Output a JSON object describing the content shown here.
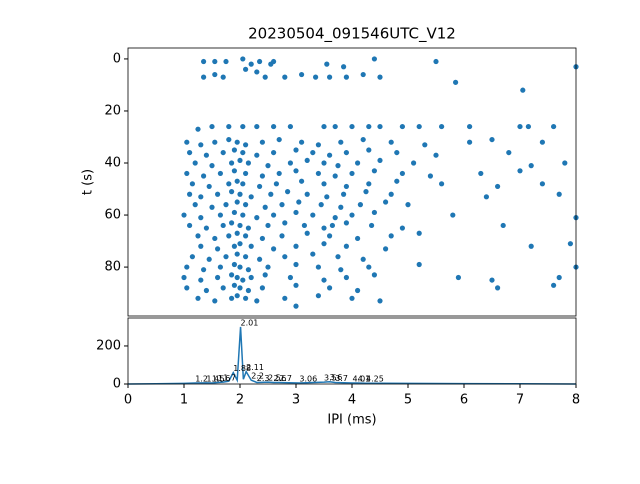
{
  "chart_data": [
    {
      "type": "scatter",
      "title": "20230504_091546UTC_V12",
      "ylabel": "t (s)",
      "color": "#1f77b4",
      "xlim": [
        0,
        8
      ],
      "ylim": [
        -4.2,
        98.8
      ],
      "y_inverted": true,
      "yticks": [
        0,
        20,
        40,
        60,
        80
      ],
      "x": [
        1.35,
        1.55,
        1.75,
        2.05,
        2.35,
        2.55,
        1.35,
        1.55,
        1.7,
        2.1,
        2.3,
        2.45,
        2.8,
        3.1,
        3.35,
        3.6,
        3.9,
        4.2,
        4.4,
        4.5,
        5.5,
        5.85,
        7.05,
        8,
        3.55,
        3.85,
        2.6,
        2.2,
        1.5,
        1.8,
        2.05,
        2.3,
        2.6,
        2.9,
        3.5,
        3.7,
        4.0,
        4.3,
        4.5,
        4.9,
        5.2,
        5.6,
        6.1,
        7.0,
        7.15,
        7.6,
        1.25,
        1.05,
        1.3,
        1.55,
        1.8,
        1.95,
        2.1,
        2.4,
        2.7,
        3.1,
        3.4,
        3.8,
        4.2,
        4.7,
        5.3,
        6.1,
        6.5,
        7.4,
        1.1,
        1.4,
        1.7,
        1.9,
        2.05,
        2.3,
        2.6,
        3.0,
        3.3,
        3.6,
        3.9,
        4.3,
        4.8,
        5.5,
        6.8,
        1.2,
        1.5,
        1.85,
        2.0,
        2.15,
        2.5,
        2.9,
        3.2,
        3.5,
        3.75,
        4.1,
        4.5,
        5.1,
        7.2,
        7.8,
        1.05,
        1.35,
        1.65,
        1.9,
        2.1,
        2.4,
        2.7,
        3.0,
        3.4,
        3.7,
        4.0,
        4.4,
        4.9,
        5.4,
        6.3,
        7.0,
        1.15,
        1.45,
        1.8,
        1.95,
        2.05,
        2.35,
        2.65,
        3.1,
        3.5,
        3.9,
        4.3,
        4.8,
        5.6,
        6.6,
        7.4,
        1.1,
        1.3,
        1.6,
        1.85,
        2.0,
        2.2,
        2.55,
        2.85,
        3.2,
        3.55,
        3.85,
        4.25,
        4.7,
        6.4,
        7.7,
        1.2,
        1.5,
        1.75,
        1.95,
        2.1,
        2.45,
        2.75,
        3.05,
        3.45,
        3.8,
        4.15,
        4.6,
        5.0,
        1.0,
        1.3,
        1.65,
        1.9,
        2.05,
        2.3,
        2.6,
        3.0,
        3.3,
        3.7,
        4.0,
        4.4,
        5.8,
        8.0,
        1.1,
        1.4,
        1.7,
        1.85,
        2.0,
        2.15,
        2.5,
        2.8,
        3.15,
        3.5,
        3.65,
        3.9,
        4.35,
        4.9,
        6.7,
        1.25,
        1.55,
        1.8,
        1.95,
        2.1,
        2.4,
        2.75,
        3.2,
        3.6,
        4.1,
        4.7,
        5.2,
        1.3,
        1.6,
        1.9,
        2.0,
        2.2,
        2.6,
        3.0,
        3.5,
        3.9,
        4.6,
        7.2,
        7.9,
        1.15,
        1.45,
        1.75,
        1.95,
        2.1,
        2.35,
        2.8,
        3.3,
        3.75,
        4.2,
        1.05,
        1.35,
        1.65,
        1.9,
        2.0,
        2.15,
        2.5,
        3.0,
        3.4,
        3.8,
        4.3,
        5.2,
        8.0,
        1.0,
        1.3,
        1.6,
        1.85,
        1.95,
        2.05,
        2.2,
        2.45,
        2.9,
        3.5,
        3.9,
        4.4,
        5.9,
        6.5,
        7.7,
        1.05,
        1.4,
        1.7,
        1.9,
        2.0,
        2.15,
        2.4,
        3.0,
        3.6,
        4.1,
        6.6,
        7.6,
        1.25,
        1.55,
        1.85,
        1.95,
        2.1,
        2.3,
        2.8,
        3.4,
        4.0,
        4.5,
        3.0
      ],
      "y": [
        1,
        1,
        1,
        0,
        1,
        2,
        7,
        6,
        7,
        4,
        5,
        7,
        7,
        6,
        7,
        7,
        7,
        6,
        0,
        7,
        1,
        9,
        12,
        3,
        2,
        3,
        1,
        2,
        26,
        26,
        26,
        26,
        26,
        26,
        26,
        26,
        26,
        26,
        26,
        26,
        26,
        26,
        26,
        26,
        26,
        26,
        27,
        32,
        33,
        32,
        31,
        32,
        33,
        32,
        31,
        32,
        33,
        32,
        31,
        32,
        33,
        32,
        31,
        32,
        36,
        37,
        36,
        35,
        36,
        37,
        36,
        35,
        36,
        37,
        36,
        35,
        36,
        37,
        36,
        40,
        41,
        40,
        39,
        40,
        41,
        40,
        39,
        40,
        41,
        40,
        39,
        40,
        41,
        40,
        44,
        45,
        44,
        43,
        44,
        45,
        44,
        43,
        44,
        45,
        44,
        43,
        44,
        45,
        44,
        43,
        48,
        49,
        48,
        47,
        48,
        49,
        48,
        47,
        48,
        49,
        48,
        47,
        48,
        49,
        48,
        52,
        53,
        52,
        51,
        52,
        53,
        52,
        51,
        52,
        53,
        52,
        51,
        52,
        53,
        52,
        56,
        57,
        56,
        55,
        56,
        57,
        56,
        55,
        56,
        57,
        56,
        55,
        56,
        60,
        61,
        60,
        59,
        60,
        61,
        60,
        59,
        60,
        61,
        60,
        59,
        60,
        61,
        64,
        65,
        64,
        63,
        64,
        65,
        64,
        63,
        64,
        65,
        64,
        63,
        64,
        65,
        64,
        68,
        69,
        68,
        67,
        68,
        69,
        68,
        67,
        68,
        69,
        68,
        67,
        72,
        73,
        72,
        71,
        72,
        73,
        72,
        71,
        72,
        73,
        72,
        71,
        76,
        77,
        76,
        75,
        76,
        77,
        76,
        75,
        76,
        77,
        80,
        81,
        80,
        79,
        80,
        81,
        80,
        79,
        80,
        81,
        80,
        79,
        80,
        84,
        85,
        84,
        83,
        84,
        85,
        84,
        83,
        84,
        85,
        84,
        83,
        84,
        85,
        84,
        88,
        89,
        88,
        87,
        88,
        89,
        88,
        87,
        88,
        89,
        88,
        87,
        92,
        93,
        92,
        91,
        92,
        93,
        92,
        91,
        92,
        93,
        95
      ]
    },
    {
      "type": "line",
      "xlabel": "IPI (ms)",
      "color": "#1f77b4",
      "xlim": [
        0,
        8
      ],
      "ylim": [
        0,
        347
      ],
      "xticks": [
        0,
        1,
        2,
        3,
        4,
        5,
        6,
        7,
        8
      ],
      "yticks": [
        0,
        200
      ],
      "x": [
        0,
        0.5,
        1.0,
        1.2,
        1.4,
        1.5,
        1.6,
        1.7,
        1.8,
        1.88,
        1.95,
        2.01,
        2.06,
        2.11,
        2.2,
        2.3,
        2.5,
        2.6,
        2.7,
        3.06,
        3.5,
        3.6,
        3.7,
        4.01,
        4.1,
        4.25,
        5,
        6,
        7,
        8
      ],
      "values": [
        0,
        1,
        3,
        5,
        6,
        5,
        8,
        10,
        15,
        60,
        20,
        300,
        25,
        65,
        20,
        8,
        10,
        8,
        8,
        5,
        10,
        12,
        8,
        5,
        5,
        4,
        3,
        2,
        1,
        0
      ],
      "peaks": {
        "x": [
          1.2,
          1.4,
          1.5,
          1.6,
          1.7,
          1.88,
          2.01,
          2.11,
          2.2,
          2.3,
          2.5,
          2.6,
          2.7,
          3.06,
          3.5,
          3.6,
          3.7,
          4.01,
          4.1,
          4.25
        ],
        "y": [
          5,
          6,
          5,
          8,
          10,
          60,
          300,
          65,
          20,
          8,
          10,
          8,
          8,
          5,
          10,
          12,
          8,
          5,
          5,
          4
        ]
      }
    }
  ]
}
